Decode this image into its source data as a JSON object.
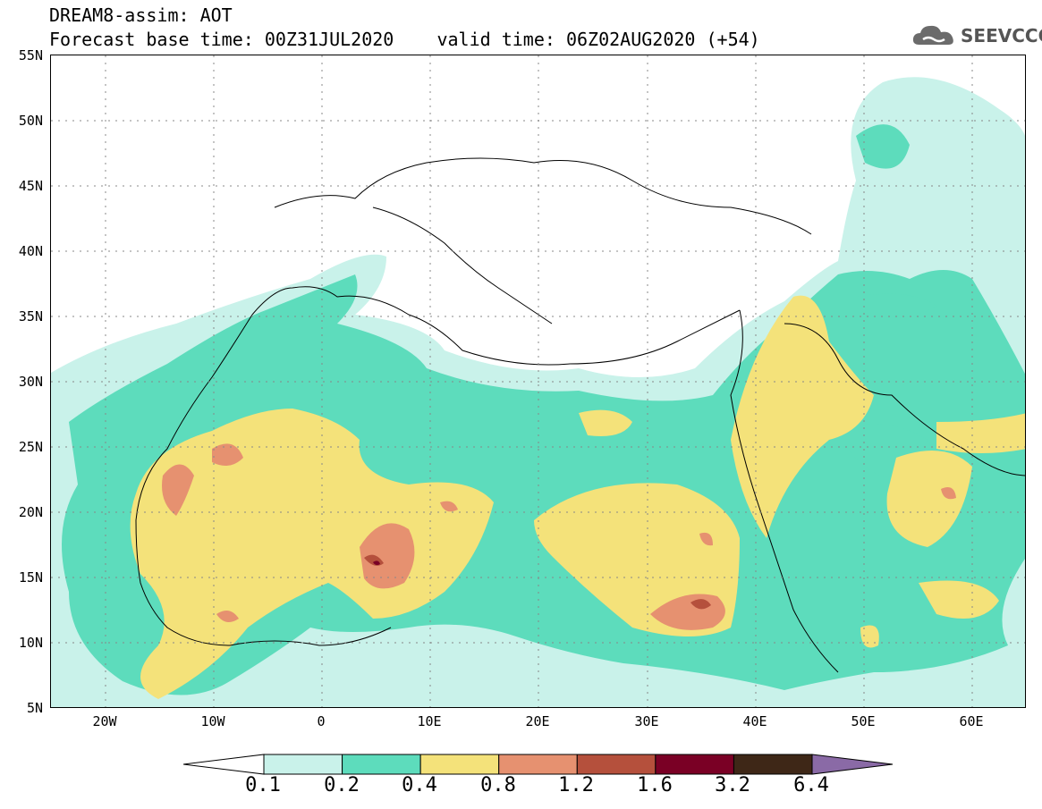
{
  "header": {
    "title_line1": "DREAM8-assim: AOT",
    "title_line2": "Forecast base time: 00Z31JUL2020    valid time: 06Z02AUG2020 (+54)",
    "logo_text": "SEEVCCC"
  },
  "map": {
    "variable": "AOT",
    "lat_labels": [
      "55N",
      "50N",
      "45N",
      "40N",
      "35N",
      "30N",
      "25N",
      "20N",
      "15N",
      "10N",
      "5N"
    ],
    "lon_labels": [
      "20W",
      "10W",
      "0",
      "10E",
      "20E",
      "30E",
      "40E",
      "50E",
      "60E"
    ]
  },
  "colorbar": {
    "levels": [
      "0.1",
      "0.2",
      "0.4",
      "0.8",
      "1.2",
      "1.6",
      "3.2",
      "6.4"
    ],
    "colors": [
      "#c9f2ea",
      "#5ddcbc",
      "#f4e27a",
      "#e69170",
      "#b5503c",
      "#7a0025",
      "#3e2717",
      "#8a6aa6"
    ]
  }
}
